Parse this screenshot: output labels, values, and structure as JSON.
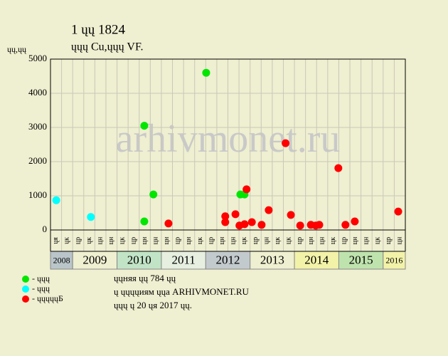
{
  "chart_data": {
    "type": "scatter",
    "title": "1 ųų 1824",
    "subtitle": "ųųų Cu,ųųų VF.",
    "y_label": "ųų,ųų",
    "watermark": "arhivmonet.ru",
    "xlim": [
      2008.5,
      2016.5
    ],
    "ylim": [
      0,
      5000
    ],
    "yticks": [
      0,
      1000,
      2000,
      3000,
      4000,
      5000
    ],
    "grid": true,
    "background": "#efefd1",
    "period_labels": [
      "ųя",
      "ųк",
      "цр",
      "ųк",
      "цн",
      "цн",
      "цк",
      "цр",
      "цн",
      "цн",
      "цн",
      "цр",
      "цн",
      "цк",
      "цр",
      "цн",
      "цн",
      "цк",
      "цр",
      "ųн",
      "цк",
      "цк",
      "цр",
      "цн",
      "цн",
      "цк",
      "цр",
      "цн",
      "цн",
      "цк",
      "цр",
      "цн"
    ],
    "year_ticks": [
      2008,
      2009,
      2010,
      2011,
      2012,
      2013,
      2014,
      2015,
      2016
    ],
    "year_colors": [
      "#b9c5c9",
      "#efefd1",
      "#c2e4c6",
      "#e6efe0",
      "#c3cacd",
      "#efefd1",
      "#f2f2a9",
      "#bfe3ad",
      "#f2f2a9"
    ],
    "series": [
      {
        "name": "- ųųų",
        "color": "#00e600",
        "x": [
          2010.615,
          2010.615,
          2010.82,
          2012.01,
          2012.78,
          2012.875
        ],
        "values": [
          250,
          3050,
          1040,
          4600,
          1040,
          1040
        ]
      },
      {
        "name": "- ųųų",
        "color": "#00ffff",
        "x": [
          2008.63,
          2009.41
        ],
        "values": [
          870,
          380
        ]
      },
      {
        "name": "- ųųųųųБ",
        "color": "#ff0000",
        "x": [
          2011.16,
          2012.44,
          2012.44,
          2012.67,
          2012.76,
          2012.875,
          2012.92,
          2013.04,
          2013.26,
          2013.42,
          2013.8,
          2013.92,
          2014.13,
          2014.37,
          2014.48,
          2014.56,
          2014.99,
          2015.15,
          2015.36,
          2016.34
        ],
        "values": [
          190,
          400,
          230,
          460,
          130,
          170,
          1190,
          230,
          150,
          580,
          2540,
          440,
          130,
          150,
          130,
          150,
          1810,
          150,
          250,
          540
        ]
      }
    ],
    "notes": [
      "ųųняя ųų 784 ųų",
      "ų ųųųųиям ųųа ARHIVMONET.RU",
      "ųųų ų 20 ųя 2017 ųų."
    ]
  }
}
